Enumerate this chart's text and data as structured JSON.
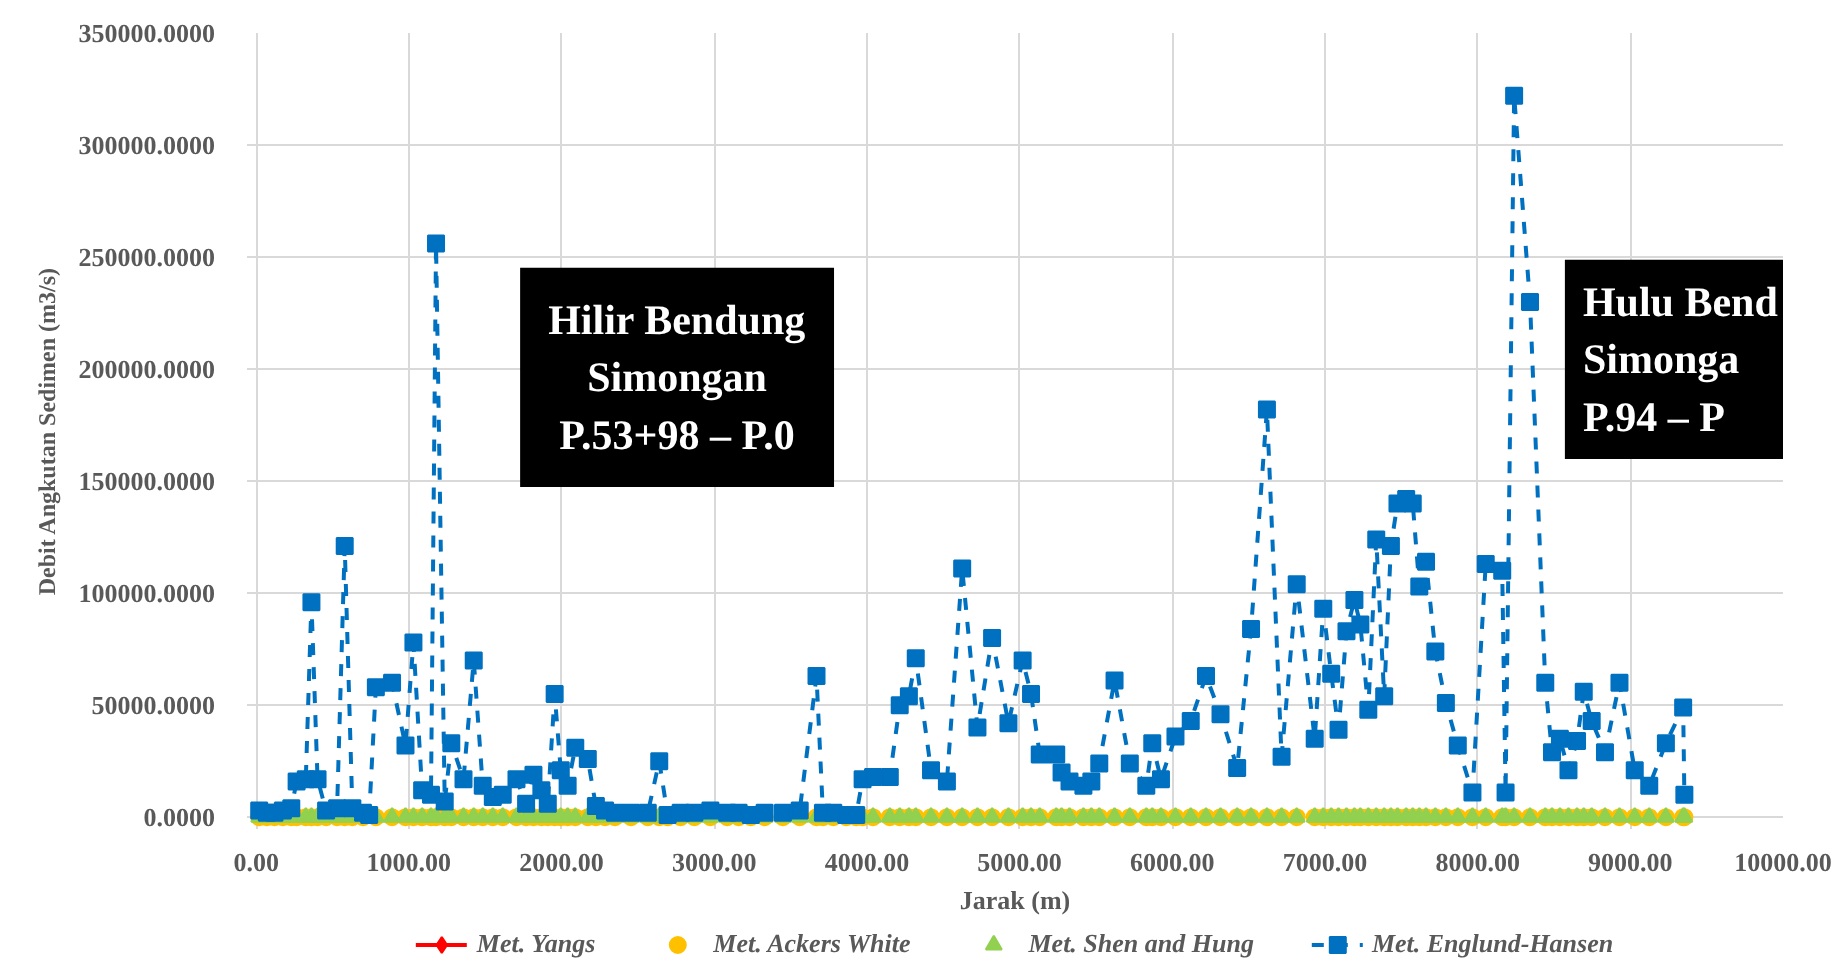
{
  "chart_data": {
    "type": "line",
    "xlabel": "Jarak (m)",
    "ylabel": "Debit Angkutan Sedimen (m3/s)",
    "xlim": [
      0,
      10000
    ],
    "ylim": [
      0,
      350000
    ],
    "xticks": [
      {
        "value": 0,
        "label": "0.00"
      },
      {
        "value": 1000,
        "label": "1000.00"
      },
      {
        "value": 2000,
        "label": "2000.00"
      },
      {
        "value": 3000,
        "label": "3000.00"
      },
      {
        "value": 4000,
        "label": "4000.00"
      },
      {
        "value": 5000,
        "label": "5000.00"
      },
      {
        "value": 6000,
        "label": "6000.00"
      },
      {
        "value": 7000,
        "label": "7000.00"
      },
      {
        "value": 8000,
        "label": "8000.00"
      },
      {
        "value": 9000,
        "label": "9000.00"
      },
      {
        "value": 10000,
        "label": "10000.00"
      }
    ],
    "yticks": [
      {
        "value": 0,
        "label": "0.0000"
      },
      {
        "value": 50000,
        "label": "50000.0000"
      },
      {
        "value": 100000,
        "label": "100000.0000"
      },
      {
        "value": 150000,
        "label": "150000.0000"
      },
      {
        "value": 200000,
        "label": "200000.0000"
      },
      {
        "value": 250000,
        "label": "250000.0000"
      },
      {
        "value": 300000,
        "label": "300000.0000"
      },
      {
        "value": 350000,
        "label": "350000.0000"
      }
    ],
    "grid": true,
    "legend": "bottom",
    "annotations": [
      "Hilir Bendung\nSimongan\nP.53+98 – P.0",
      "Hulu Bend\nSimonga\nP.94 – P"
    ],
    "x": [
      20,
      70,
      120,
      175,
      230,
      265,
      325,
      362,
      402,
      458,
      530,
      580,
      630,
      700,
      740,
      784,
      890,
      978,
      1030,
      1087,
      1145,
      1178,
      1235,
      1278,
      1358,
      1425,
      1484,
      1550,
      1615,
      1705,
      1768,
      1816,
      1868,
      1910,
      1955,
      1995,
      2040,
      2090,
      2172,
      2225,
      2285,
      2350,
      2455,
      2565,
      2640,
      2695,
      2780,
      2870,
      2975,
      3085,
      3160,
      3240,
      3330,
      3450,
      3560,
      3670,
      3712,
      3780,
      3865,
      3930,
      3972,
      4040,
      4150,
      4215,
      4275,
      4320,
      4420,
      4524,
      4624,
      4724,
      4820,
      4927,
      5020,
      5075,
      5132,
      5240,
      5275,
      5327,
      5418,
      5470,
      5522,
      5622,
      5722,
      5830,
      5869,
      5926,
      6021,
      6121,
      6221,
      6316,
      6425,
      6516,
      6620,
      6716,
      6815,
      6933,
      6989,
      7041,
      7089,
      7141,
      7193,
      7232,
      7284,
      7336,
      7388,
      7432,
      7475,
      7532,
      7575,
      7618,
      7662,
      7723,
      7792,
      7870,
      7966,
      8053,
      8161,
      8183,
      8239,
      8343,
      8443,
      8487,
      8539,
      8595,
      8651,
      8695,
      8747,
      8834,
      8929,
      9029,
      9124,
      9233,
      9346,
      9354
    ],
    "series": [
      {
        "name": "Met. Yangs",
        "color": "#ff0000",
        "marker": "diamond",
        "line_style": "solid",
        "values": [
          null,
          null,
          null,
          null,
          null,
          null,
          null,
          null,
          null,
          null,
          null,
          null,
          null,
          null,
          null,
          null,
          null,
          null,
          null,
          null,
          null,
          null,
          null,
          null,
          null,
          null,
          null,
          null,
          null,
          null,
          null,
          null,
          null,
          null,
          null,
          null,
          null,
          null,
          null,
          null,
          null,
          null,
          null,
          null,
          null,
          null,
          null,
          null,
          null,
          null,
          null,
          null,
          null,
          null,
          null,
          null,
          null,
          null,
          null,
          null,
          null,
          null,
          null,
          null,
          null,
          null,
          null,
          null,
          null,
          null,
          null,
          null,
          null,
          null,
          null,
          null,
          null,
          null,
          null,
          null,
          null,
          null,
          null,
          null,
          null,
          null,
          null,
          null,
          null,
          null,
          null,
          null,
          null,
          null,
          null,
          null,
          null,
          null,
          null,
          null,
          null,
          null,
          null,
          null,
          null,
          null,
          null,
          null,
          null,
          null,
          null,
          null,
          null,
          null,
          null,
          null,
          null,
          null,
          null,
          null,
          null,
          null,
          null,
          null,
          null,
          null,
          null,
          null,
          null,
          null,
          null,
          null,
          null,
          null
        ]
      },
      {
        "name": "Met. Ackers White",
        "type": "scatter",
        "color": "#ffc000",
        "marker": "circle",
        "values": [
          0,
          0,
          0,
          0,
          0,
          0,
          0,
          0,
          0,
          0,
          0,
          0,
          0,
          0,
          null,
          0,
          0,
          0,
          0,
          0,
          0,
          0,
          0,
          0,
          0,
          0,
          0,
          0,
          0,
          0,
          0,
          0,
          0,
          0,
          0,
          0,
          0,
          0,
          0,
          0,
          0,
          0,
          0,
          0,
          0,
          0,
          0,
          0,
          0,
          0,
          0,
          0,
          0,
          0,
          0,
          0,
          0,
          0,
          0,
          0,
          0,
          0,
          0,
          0,
          0,
          0,
          0,
          0,
          0,
          0,
          0,
          0,
          0,
          0,
          0,
          0,
          0,
          0,
          0,
          0,
          0,
          0,
          0,
          0,
          0,
          0,
          0,
          0,
          0,
          0,
          0,
          0,
          0,
          0,
          0,
          0,
          0,
          0,
          0,
          0,
          0,
          0,
          0,
          0,
          0,
          0,
          0,
          0,
          0,
          0,
          0,
          0,
          0,
          0,
          0,
          0,
          0,
          0,
          0,
          0,
          0,
          0,
          0,
          0,
          0,
          0,
          0,
          0,
          0,
          0,
          0,
          0,
          0,
          0
        ]
      },
      {
        "name": "Met. Shen and Hung",
        "type": "scatter",
        "color": "#92d050",
        "marker": "triangle",
        "values": [
          0,
          0,
          0,
          0,
          0,
          0,
          0,
          0,
          0,
          0,
          0,
          0,
          0,
          null,
          null,
          0,
          0,
          0,
          0,
          0,
          0,
          0,
          0,
          0,
          0,
          0,
          0,
          0,
          0,
          0,
          0,
          0,
          0,
          0,
          0,
          0,
          0,
          0,
          0,
          0,
          0,
          0,
          0,
          0,
          0,
          null,
          0,
          0,
          0,
          0,
          0,
          null,
          0,
          0,
          0,
          0,
          0,
          0,
          null,
          null,
          0,
          0,
          0,
          0,
          0,
          0,
          0,
          0,
          0,
          0,
          0,
          0,
          0,
          0,
          0,
          0,
          0,
          0,
          0,
          0,
          0,
          0,
          0,
          0,
          0,
          0,
          0,
          0,
          0,
          0,
          0,
          0,
          0,
          0,
          0,
          0,
          0,
          0,
          0,
          0,
          0,
          0,
          0,
          0,
          0,
          0,
          0,
          0,
          0,
          0,
          0,
          0,
          0,
          0,
          0,
          0,
          0,
          0,
          0,
          0,
          0,
          0,
          0,
          0,
          0,
          0,
          0,
          0,
          0,
          0,
          0,
          0,
          0,
          0
        ]
      },
      {
        "name": "Met. Englund-Hansen",
        "color": "#0070c0",
        "marker": "square",
        "line_style": "dashed",
        "values": [
          3000,
          2000,
          2000,
          3000,
          4000,
          16000,
          17000,
          96000,
          17000,
          3000,
          4000,
          121000,
          4000,
          2000,
          1000,
          58000,
          60000,
          32000,
          78000,
          12000,
          10000,
          256000,
          7000,
          33000,
          17000,
          70000,
          14000,
          9000,
          10000,
          17000,
          6000,
          19000,
          12000,
          6000,
          55000,
          21000,
          14000,
          31000,
          26000,
          5000,
          3000,
          2000,
          2000,
          2000,
          25000,
          1000,
          2000,
          2000,
          3000,
          2000,
          2000,
          1000,
          2000,
          2000,
          3000,
          63000,
          2000,
          2000,
          1000,
          1000,
          17000,
          18000,
          18000,
          50000,
          54000,
          71000,
          21000,
          16000,
          111000,
          40000,
          80000,
          42000,
          70000,
          55000,
          28000,
          28000,
          20000,
          16000,
          14000,
          16000,
          24000,
          61000,
          24000,
          14000,
          33000,
          17000,
          36000,
          43000,
          63000,
          46000,
          22000,
          84000,
          182000,
          27000,
          104000,
          35000,
          93000,
          64000,
          39000,
          83000,
          97000,
          86000,
          48000,
          124000,
          54000,
          121000,
          140000,
          142000,
          140000,
          103000,
          114000,
          74000,
          51000,
          32000,
          11000,
          113000,
          110000,
          11000,
          322000,
          230000,
          60000,
          29000,
          35000,
          21000,
          34000,
          56000,
          43000,
          29000,
          60000,
          21000,
          14000,
          33000,
          49000,
          10000
        ]
      }
    ]
  }
}
